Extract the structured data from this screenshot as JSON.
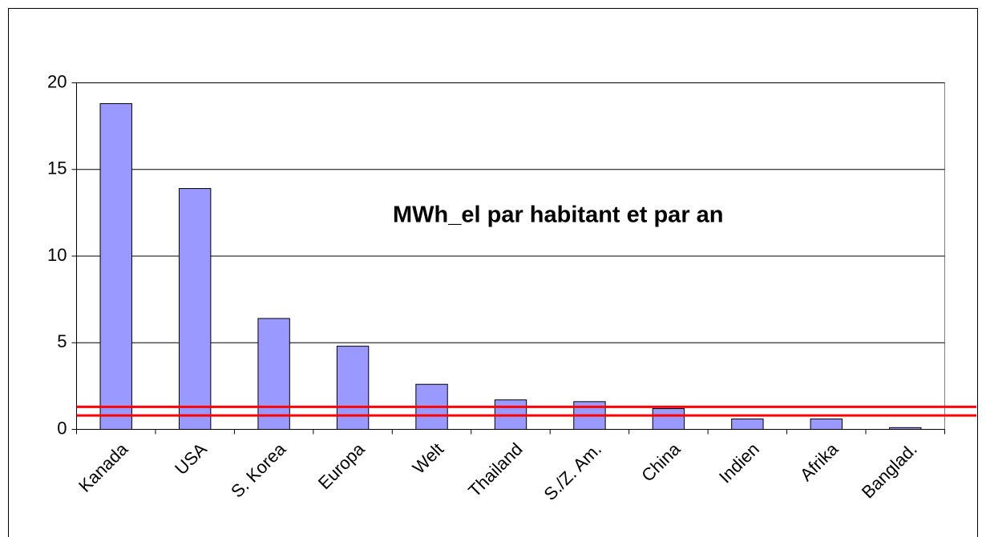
{
  "chart_data": {
    "type": "bar",
    "categories": [
      "Kanada",
      "USA",
      "S. Korea",
      "Europa",
      "Welt",
      "Thailand",
      "S./Z. Am.",
      "China",
      "Indien",
      "Afrika",
      "Banglad."
    ],
    "values": [
      18.8,
      13.9,
      6.4,
      4.8,
      2.6,
      1.7,
      1.6,
      1.2,
      0.6,
      0.6,
      0.1
    ],
    "color": "#9999ff",
    "ylim": [
      0,
      20
    ],
    "yticks": [
      0,
      5,
      10,
      15,
      20
    ],
    "grid": true,
    "annotation": "MWh_el par habitant et par an",
    "annotation_color": "#ff0000",
    "hlines": [
      1.3,
      0.8
    ],
    "hline_color": "#ff0000"
  }
}
